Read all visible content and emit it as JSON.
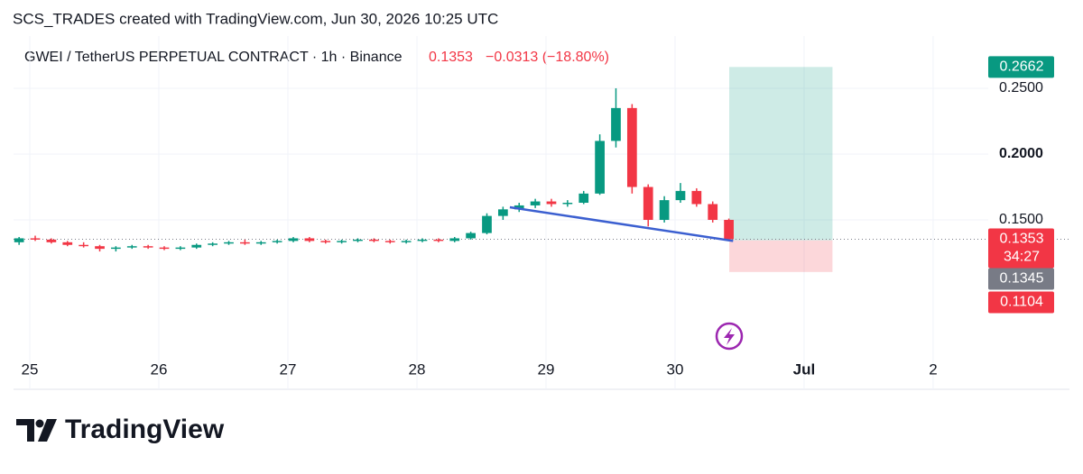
{
  "chart_data": {
    "type": "candlestick",
    "title": "SCS_TRADES created with TradingView.com, Jun 30, 2026 10:25 UTC",
    "symbol": "GWEI / TetherUS PERPETUAL CONTRACT · 1h · Binance",
    "last": 0.1353,
    "change": "−0.0313 (−18.80%)",
    "countdown": "34:27",
    "brand": "TradingView",
    "up_color": "#089981",
    "down_color": "#f23645",
    "grid": true,
    "x": [
      24.917,
      25.042,
      25.167,
      25.292,
      25.417,
      25.542,
      25.667,
      25.792,
      25.917,
      26.042,
      26.167,
      26.292,
      26.417,
      26.542,
      26.667,
      26.792,
      26.917,
      27.042,
      27.167,
      27.292,
      27.417,
      27.542,
      27.667,
      27.792,
      27.917,
      28.042,
      28.167,
      28.292,
      28.417,
      28.542,
      28.667,
      28.792,
      28.917,
      29.042,
      29.167,
      29.292,
      29.417,
      29.542,
      29.667,
      29.792,
      29.917,
      30.042,
      30.167,
      30.292,
      30.417
    ],
    "open": [
      0.133,
      0.136,
      0.135,
      0.133,
      0.131,
      0.13,
      0.128,
      0.129,
      0.13,
      0.129,
      0.128,
      0.129,
      0.131,
      0.132,
      0.133,
      0.132,
      0.133,
      0.134,
      0.136,
      0.134,
      0.133,
      0.134,
      0.135,
      0.134,
      0.133,
      0.134,
      0.135,
      0.134,
      0.136,
      0.14,
      0.153,
      0.158,
      0.161,
      0.164,
      0.162,
      0.163,
      0.17,
      0.21,
      0.235,
      0.175,
      0.15,
      0.165,
      0.172,
      0.162,
      0.15
    ],
    "high": [
      0.137,
      0.138,
      0.136,
      0.134,
      0.133,
      0.131,
      0.13,
      0.131,
      0.131,
      0.13,
      0.13,
      0.132,
      0.133,
      0.134,
      0.135,
      0.134,
      0.135,
      0.137,
      0.137,
      0.135,
      0.135,
      0.136,
      0.136,
      0.135,
      0.135,
      0.136,
      0.136,
      0.137,
      0.141,
      0.155,
      0.16,
      0.163,
      0.166,
      0.166,
      0.165,
      0.172,
      0.215,
      0.25,
      0.238,
      0.177,
      0.168,
      0.178,
      0.174,
      0.164,
      0.151
    ],
    "low": [
      0.131,
      0.134,
      0.132,
      0.13,
      0.129,
      0.126,
      0.126,
      0.128,
      0.128,
      0.127,
      0.127,
      0.128,
      0.13,
      0.131,
      0.131,
      0.131,
      0.132,
      0.133,
      0.133,
      0.132,
      0.132,
      0.133,
      0.133,
      0.132,
      0.132,
      0.133,
      0.133,
      0.133,
      0.135,
      0.139,
      0.15,
      0.156,
      0.159,
      0.16,
      0.16,
      0.162,
      0.169,
      0.205,
      0.17,
      0.145,
      0.148,
      0.163,
      0.16,
      0.148,
      0.134
    ],
    "close": [
      0.136,
      0.135,
      0.133,
      0.131,
      0.13,
      0.128,
      0.129,
      0.13,
      0.129,
      0.128,
      0.129,
      0.131,
      0.132,
      0.133,
      0.132,
      0.133,
      0.134,
      0.136,
      0.134,
      0.133,
      0.134,
      0.135,
      0.134,
      0.133,
      0.134,
      0.135,
      0.134,
      0.136,
      0.14,
      0.153,
      0.158,
      0.161,
      0.164,
      0.162,
      0.163,
      0.17,
      0.21,
      0.235,
      0.175,
      0.15,
      0.165,
      0.172,
      0.162,
      0.15,
      0.1353
    ],
    "xlim": [
      24.874,
      32.427
    ],
    "ylim": [
      0.0466,
      0.2897
    ],
    "xticks": [
      25,
      26,
      27,
      28,
      29,
      30,
      {
        "value": 31,
        "label": "Jul"
      },
      {
        "value": 32,
        "label": "2"
      }
    ],
    "yticks": [
      {
        "value": 0.15,
        "label": "0.1500"
      },
      {
        "value": 0.2,
        "label": "0.2000"
      },
      {
        "value": 0.25,
        "label": "0.2500"
      }
    ],
    "position": {
      "entry": 0.1345,
      "target": 0.2662,
      "stop": 0.1104,
      "start": 30.42,
      "end": 31.22
    },
    "trendline": {
      "x": [
        28.72,
        30.45
      ],
      "y": [
        0.1596,
        0.134
      ]
    }
  }
}
